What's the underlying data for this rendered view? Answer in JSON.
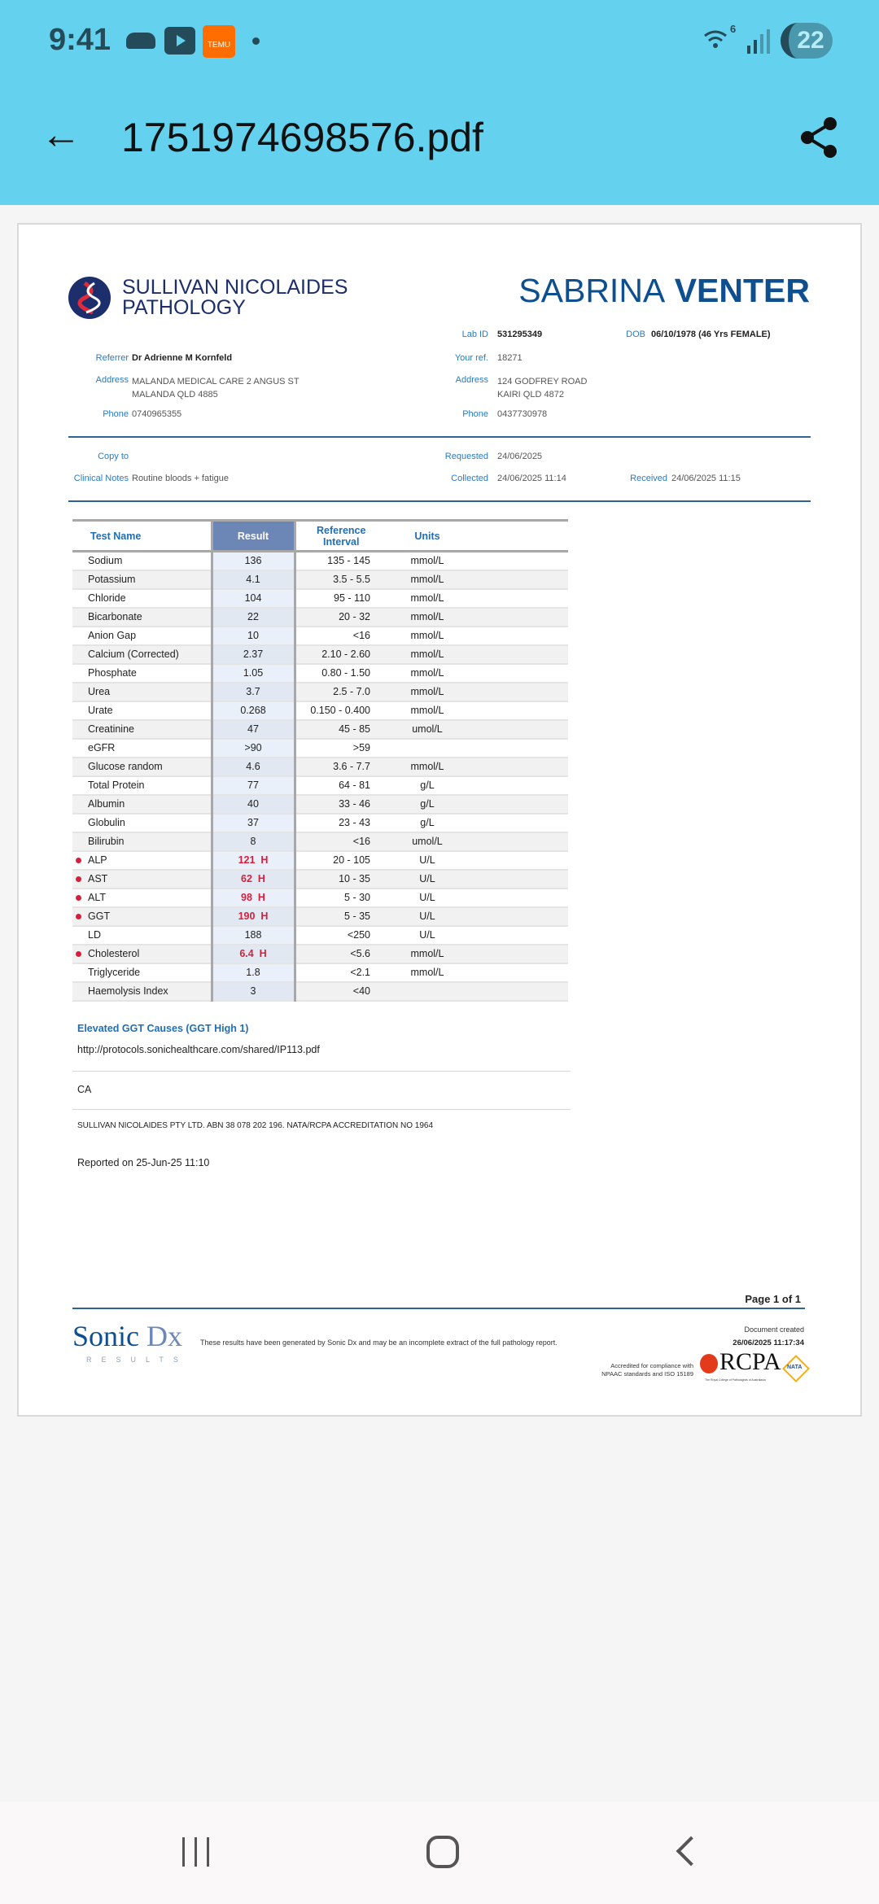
{
  "status_bar": {
    "time": "9:41",
    "notification_icons": [
      "cloud-icon",
      "youtube-icon",
      "temu-icon",
      "dot-icon"
    ],
    "temu_label": "TEMU",
    "wifi_label": "6",
    "battery": "22"
  },
  "app_bar": {
    "title": "1751974698576.pdf",
    "back_icon": "arrow-left-icon",
    "share_icon": "share-icon"
  },
  "report": {
    "lab_name_line1": "SULLIVAN NICOLAIDES",
    "lab_name_line2": "PATHOLOGY",
    "patient_name_first": "SABRINA",
    "patient_name_last": "VENTER",
    "lab_id_label": "Lab ID",
    "lab_id": "531295349",
    "dob_label": "DOB",
    "dob": "06/10/1978 (46 Yrs FEMALE)",
    "referrer_label": "Referrer",
    "referrer": "Dr Adrienne M Kornfeld",
    "your_ref_label": "Your ref.",
    "your_ref": "18271",
    "address_label": "Address",
    "referrer_address_line1": "MALANDA MEDICAL CARE 2 ANGUS ST",
    "referrer_address_line2": "MALANDA QLD 4885",
    "patient_address_line1": "124 GODFREY ROAD",
    "patient_address_line2": "KAIRI QLD 4872",
    "phone_label": "Phone",
    "referrer_phone": "0740965355",
    "patient_phone": "0437730978",
    "copy_to_label": "Copy to",
    "clinical_notes_label": "Clinical Notes",
    "clinical_notes": "Routine bloods + fatigue",
    "requested_label": "Requested",
    "requested": "24/06/2025",
    "collected_label": "Collected",
    "collected": "24/06/2025 11:14",
    "received_label": "Received",
    "received": "24/06/2025 11:15",
    "table": {
      "headers": [
        "Test Name",
        "Result",
        "Reference Interval",
        "Units"
      ],
      "rows": [
        {
          "name": "Sodium",
          "result": "136",
          "flag": "",
          "ref": "135 - 145",
          "units": "mmol/L"
        },
        {
          "name": "Potassium",
          "result": "4.1",
          "flag": "",
          "ref": "3.5 - 5.5",
          "units": "mmol/L"
        },
        {
          "name": "Chloride",
          "result": "104",
          "flag": "",
          "ref": "95 - 110",
          "units": "mmol/L"
        },
        {
          "name": "Bicarbonate",
          "result": "22",
          "flag": "",
          "ref": "20 - 32",
          "units": "mmol/L"
        },
        {
          "name": "Anion Gap",
          "result": "10",
          "flag": "",
          "ref": "<16",
          "units": "mmol/L"
        },
        {
          "name": "Calcium (Corrected)",
          "result": "2.37",
          "flag": "",
          "ref": "2.10 - 2.60",
          "units": "mmol/L"
        },
        {
          "name": "Phosphate",
          "result": "1.05",
          "flag": "",
          "ref": "0.80 - 1.50",
          "units": "mmol/L"
        },
        {
          "name": "Urea",
          "result": "3.7",
          "flag": "",
          "ref": "2.5 - 7.0",
          "units": "mmol/L"
        },
        {
          "name": "Urate",
          "result": "0.268",
          "flag": "",
          "ref": "0.150 - 0.400",
          "units": "mmol/L"
        },
        {
          "name": "Creatinine",
          "result": "47",
          "flag": "",
          "ref": "45 - 85",
          "units": "umol/L"
        },
        {
          "name": "eGFR",
          "result": ">90",
          "flag": "",
          "ref": ">59",
          "units": ""
        },
        {
          "name": "Glucose random",
          "result": "4.6",
          "flag": "",
          "ref": "3.6 - 7.7",
          "units": "mmol/L"
        },
        {
          "name": "Total Protein",
          "result": "77",
          "flag": "",
          "ref": "64 - 81",
          "units": "g/L"
        },
        {
          "name": "Albumin",
          "result": "40",
          "flag": "",
          "ref": "33 - 46",
          "units": "g/L"
        },
        {
          "name": "Globulin",
          "result": "37",
          "flag": "",
          "ref": "23 - 43",
          "units": "g/L"
        },
        {
          "name": "Bilirubin",
          "result": "8",
          "flag": "",
          "ref": "<16",
          "units": "umol/L"
        },
        {
          "name": "ALP",
          "result": "121",
          "flag": "H",
          "ref": "20 - 105",
          "units": "U/L"
        },
        {
          "name": "AST",
          "result": "62",
          "flag": "H",
          "ref": "10 - 35",
          "units": "U/L"
        },
        {
          "name": "ALT",
          "result": "98",
          "flag": "H",
          "ref": "5 - 30",
          "units": "U/L"
        },
        {
          "name": "GGT",
          "result": "190",
          "flag": "H",
          "ref": "5 - 35",
          "units": "U/L"
        },
        {
          "name": "LD",
          "result": "188",
          "flag": "",
          "ref": "<250",
          "units": "U/L"
        },
        {
          "name": "Cholesterol",
          "result": "6.4",
          "flag": "H",
          "ref": "<5.6",
          "units": "mmol/L"
        },
        {
          "name": "Triglyceride",
          "result": "1.8",
          "flag": "",
          "ref": "<2.1",
          "units": "mmol/L"
        },
        {
          "name": "Haemolysis Index",
          "result": "3",
          "flag": "",
          "ref": "<40",
          "units": ""
        }
      ]
    },
    "comment_title": "Elevated GGT Causes (GGT High 1)",
    "comment_link": "http://protocols.sonichealthcare.com/shared/IP113.pdf",
    "initials": "CA",
    "accreditation": "SULLIVAN NICOLAIDES PTY LTD. ABN 38 078 202 196. NATA/RCPA ACCREDITATION NO 1964",
    "reported": "Reported on 25-Jun-25 11:10",
    "page_number": "Page 1 of 1",
    "footer_brand_a": "Sonic",
    "footer_brand_b": "Dx",
    "footer_brand_sub": "RESULTS",
    "footer_disclaimer": "These results have been generated by Sonic Dx and may be an incomplete extract of the full pathology report.",
    "doc_created_label": "Document created",
    "doc_created": "26/06/2025 11:17:34",
    "accredited_line1": "Accredited for compliance with",
    "accredited_line2": "NPAAC standards and ISO 15189",
    "rcpa": "RCPA",
    "rcpa_sub": "The Royal College of Pathologists of Australasia",
    "nata": "NATA"
  },
  "colors": {
    "app_bar": "#64d2ee",
    "brand_blue": "#0d4f8f",
    "label_blue": "#2a7bbf",
    "high_flag": "#d61f3c",
    "result_header": "#6c86b6"
  },
  "nav_bar": {
    "icons": [
      "recent-apps-icon",
      "home-icon",
      "back-icon"
    ]
  }
}
